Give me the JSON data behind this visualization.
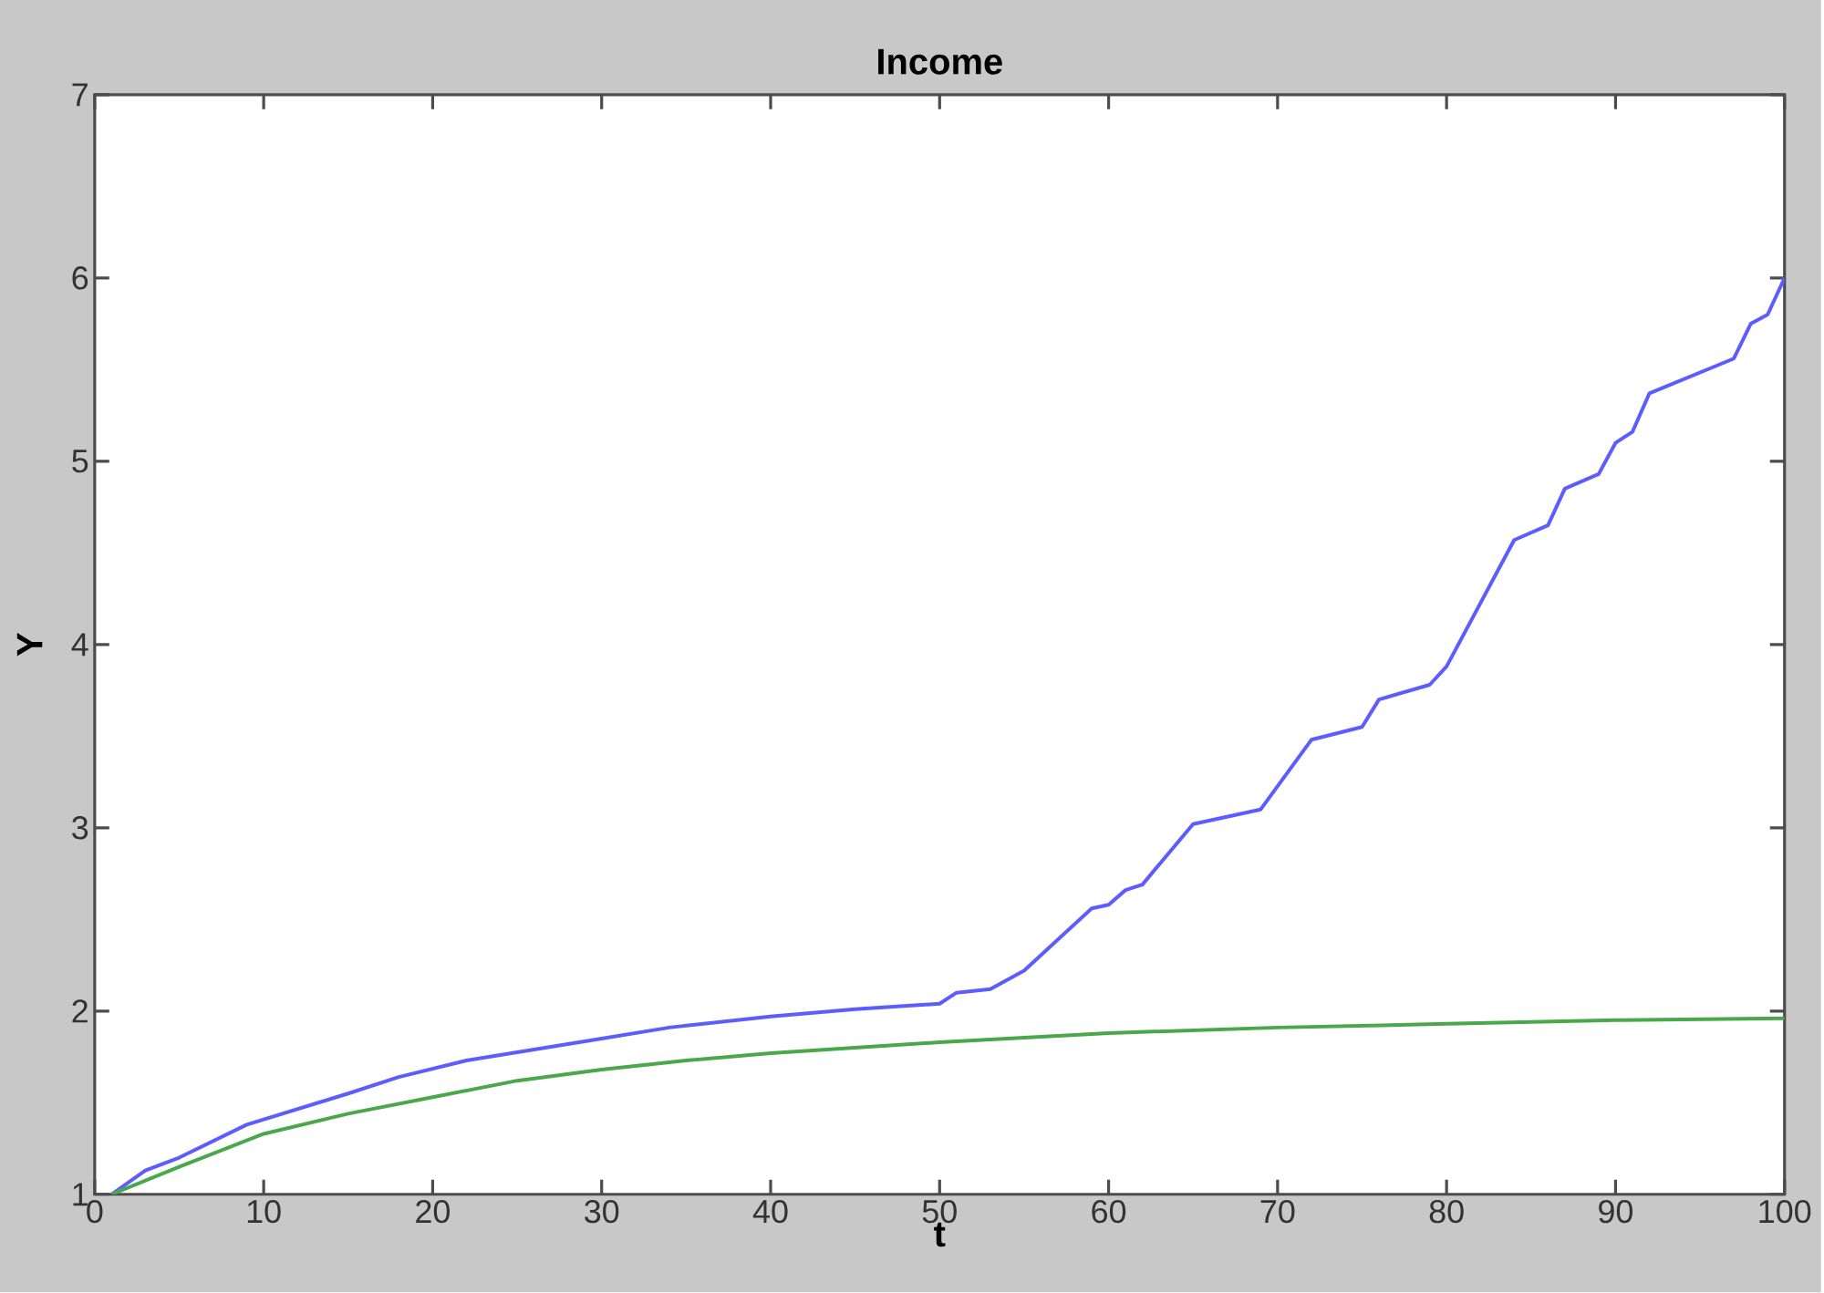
{
  "chart_data": {
    "type": "line",
    "title": "Income",
    "xlabel": "t",
    "ylabel": "Y",
    "xlim": [
      0,
      100
    ],
    "ylim": [
      1,
      7
    ],
    "xticks": [
      0,
      10,
      20,
      30,
      40,
      50,
      60,
      70,
      80,
      90,
      100
    ],
    "yticks": [
      1,
      2,
      3,
      4,
      5,
      6,
      7
    ],
    "grid": false,
    "marker": "none",
    "line_style": "solid",
    "series": [
      {
        "color": "#5c5cff",
        "x": [
          1,
          3,
          5,
          9,
          15,
          18,
          22,
          30,
          34,
          40,
          45,
          50,
          51,
          53,
          55,
          59,
          60,
          61,
          62,
          65,
          69,
          72,
          75,
          76,
          79,
          80,
          84,
          86,
          87,
          89,
          90,
          91,
          92,
          97,
          98,
          99,
          100
        ],
        "values": [
          1.0,
          1.13,
          1.2,
          1.38,
          1.55,
          1.64,
          1.73,
          1.85,
          1.91,
          1.97,
          2.01,
          2.04,
          2.1,
          2.12,
          2.22,
          2.56,
          2.58,
          2.66,
          2.69,
          3.02,
          3.1,
          3.48,
          3.55,
          3.7,
          3.78,
          3.88,
          4.57,
          4.65,
          4.85,
          4.93,
          5.1,
          5.16,
          5.37,
          5.56,
          5.75,
          5.8,
          6.0
        ]
      },
      {
        "color": "#4aa84a",
        "x": [
          1,
          5,
          10,
          15,
          20,
          25,
          30,
          35,
          40,
          45,
          50,
          60,
          70,
          80,
          90,
          100
        ],
        "values": [
          1.0,
          1.15,
          1.33,
          1.44,
          1.53,
          1.62,
          1.68,
          1.73,
          1.77,
          1.8,
          1.83,
          1.88,
          1.91,
          1.93,
          1.95,
          1.96
        ]
      }
    ]
  }
}
